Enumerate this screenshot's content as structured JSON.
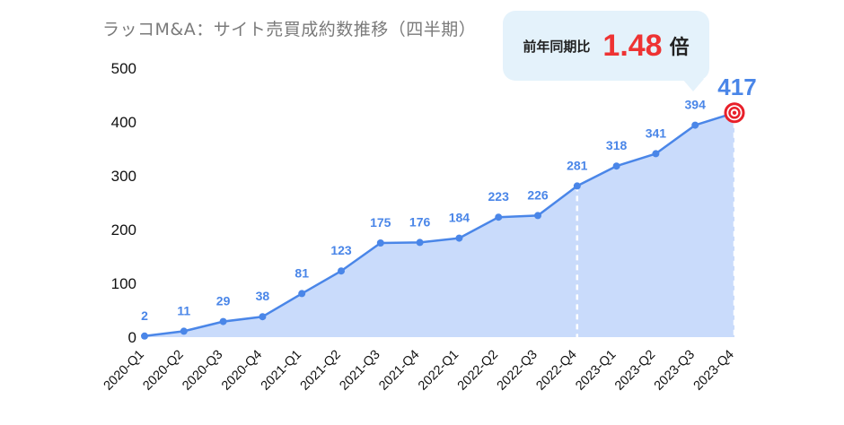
{
  "chart_data": {
    "type": "area",
    "title": "ラッコM&A：サイト売買成約数推移（四半期）",
    "categories": [
      "2020-Q1",
      "2020-Q2",
      "2020-Q3",
      "2020-Q4",
      "2021-Q1",
      "2021-Q2",
      "2021-Q3",
      "2021-Q4",
      "2022-Q1",
      "2022-Q2",
      "2022-Q3",
      "2022-Q4",
      "2023-Q1",
      "2023-Q2",
      "2023-Q3",
      "2023-Q4"
    ],
    "values": [
      2,
      11,
      29,
      38,
      81,
      123,
      175,
      176,
      184,
      223,
      226,
      281,
      318,
      341,
      394,
      417
    ],
    "ylim": [
      0,
      500
    ],
    "yticks": [
      "0",
      "100",
      "200",
      "300",
      "400",
      "500"
    ],
    "grid": false,
    "line_color": "#4a86e8",
    "fill_color": "#c9dbfb",
    "label_color": "#4a86e8",
    "highlight_index": 15,
    "highlight_color": "#e8202a",
    "reference_index": 11,
    "annotation": {
      "label": "前年同期比",
      "value": "1.48",
      "unit": "倍",
      "value_color": "#ee3333"
    }
  }
}
